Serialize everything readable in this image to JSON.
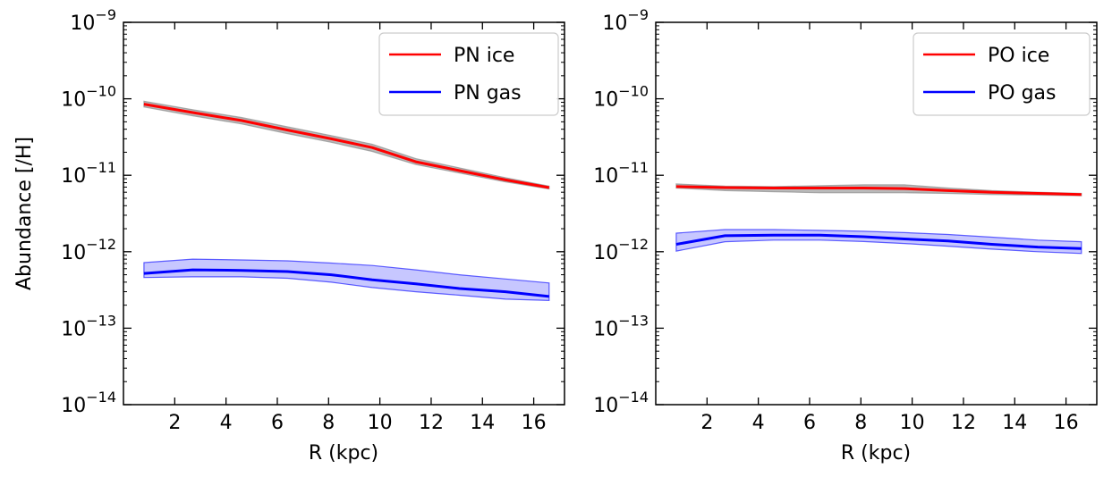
{
  "chart_data": [
    {
      "type": "line",
      "panel": "left",
      "xlabel": "R (kpc)",
      "ylabel": "Abundance [/H]",
      "yscale": "log",
      "xlim": [
        0,
        17.2
      ],
      "xticks": [
        2,
        4,
        6,
        8,
        10,
        12,
        14,
        16
      ],
      "ylim_exp": [
        -14,
        -9
      ],
      "ytick_exps": [
        -14,
        -13,
        -12,
        -11,
        -10,
        -9
      ],
      "ytick_base": "10",
      "legend_position": "top-right",
      "x": [
        0.8,
        2.7,
        4.6,
        6.4,
        8.1,
        9.7,
        11.4,
        13.1,
        14.9,
        16.6
      ],
      "series": [
        {
          "name": "PN ice",
          "color": "#ff0000",
          "band_color": "#808080",
          "values": [
            8.5e-11,
            6.6e-11,
            5.2e-11,
            3.9e-11,
            3e-11,
            2.3e-11,
            1.5e-11,
            1.15e-11,
            8.7e-12,
            6.9e-12
          ],
          "upper": [
            9.3e-11,
            7.2e-11,
            5.7e-11,
            4.3e-11,
            3.3e-11,
            2.55e-11,
            1.65e-11,
            1.25e-11,
            9.3e-12,
            7.2e-12
          ],
          "lower": [
            7.8e-11,
            6e-11,
            4.7e-11,
            3.5e-11,
            2.7e-11,
            2.05e-11,
            1.38e-11,
            1.07e-11,
            8.2e-12,
            6.6e-12
          ]
        },
        {
          "name": "PN gas",
          "color": "#0000ff",
          "band_color": "#0000ff",
          "values": [
            5.2e-13,
            5.8e-13,
            5.7e-13,
            5.5e-13,
            5e-13,
            4.3e-13,
            3.8e-13,
            3.3e-13,
            3e-13,
            2.6e-13
          ],
          "upper": [
            7.2e-13,
            8e-13,
            7.8e-13,
            7.6e-13,
            7.1e-13,
            6.6e-13,
            5.8e-13,
            5e-13,
            4.4e-13,
            3.9e-13
          ],
          "lower": [
            4.6e-13,
            4.7e-13,
            4.7e-13,
            4.5e-13,
            4e-13,
            3.4e-13,
            3e-13,
            2.7e-13,
            2.4e-13,
            2.3e-13
          ]
        }
      ]
    },
    {
      "type": "line",
      "panel": "right",
      "xlabel": "R (kpc)",
      "ylabel": "",
      "yscale": "log",
      "xlim": [
        0,
        17.2
      ],
      "xticks": [
        2,
        4,
        6,
        8,
        10,
        12,
        14,
        16
      ],
      "ylim_exp": [
        -14,
        -9
      ],
      "ytick_exps": [
        -14,
        -13,
        -12,
        -11,
        -10,
        -9
      ],
      "ytick_base": "10",
      "legend_position": "top-right",
      "x": [
        0.8,
        2.7,
        4.6,
        6.4,
        8.1,
        9.7,
        11.4,
        13.1,
        14.9,
        16.6
      ],
      "series": [
        {
          "name": "PO ice",
          "color": "#ff0000",
          "band_color": "#808080",
          "values": [
            7.1e-12,
            6.9e-12,
            6.8e-12,
            6.8e-12,
            6.8e-12,
            6.7e-12,
            6.3e-12,
            6e-12,
            5.8e-12,
            5.6e-12
          ],
          "upper": [
            7.7e-12,
            7.2e-12,
            7.1e-12,
            7.3e-12,
            7.5e-12,
            7.5e-12,
            6.8e-12,
            6.3e-12,
            6e-12,
            5.8e-12
          ],
          "lower": [
            6.8e-12,
            6.3e-12,
            6.1e-12,
            5.9e-12,
            5.9e-12,
            5.9e-12,
            5.8e-12,
            5.6e-12,
            5.5e-12,
            5.4e-12
          ]
        },
        {
          "name": "PO gas",
          "color": "#0000ff",
          "band_color": "#0000ff",
          "values": [
            1.25e-12,
            1.62e-12,
            1.65e-12,
            1.65e-12,
            1.57e-12,
            1.47e-12,
            1.38e-12,
            1.25e-12,
            1.15e-12,
            1.1e-12
          ],
          "upper": [
            1.75e-12,
            1.95e-12,
            1.95e-12,
            1.9e-12,
            1.85e-12,
            1.78e-12,
            1.68e-12,
            1.55e-12,
            1.42e-12,
            1.35e-12
          ],
          "lower": [
            1.02e-12,
            1.35e-12,
            1.42e-12,
            1.42e-12,
            1.36e-12,
            1.28e-12,
            1.18e-12,
            1.08e-12,
            1e-12,
            9.5e-13
          ]
        }
      ]
    }
  ]
}
